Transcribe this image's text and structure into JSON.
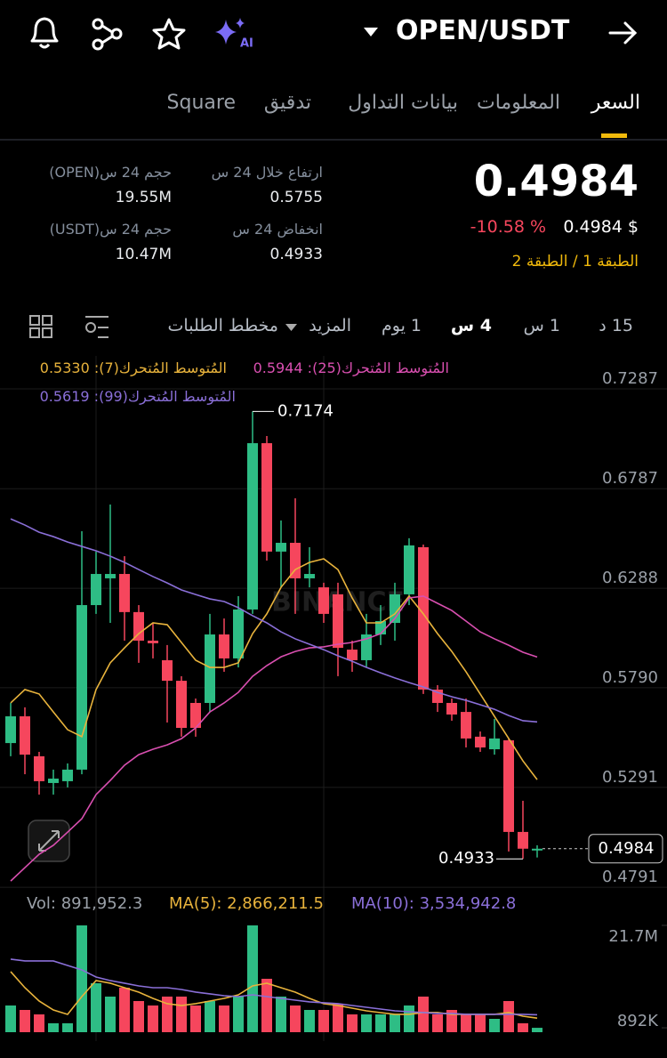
{
  "header": {
    "pair": "OPEN/USDT"
  },
  "tabs": [
    "السعر",
    "المعلومات",
    "بيانات التداول",
    "تدقيق",
    "Square"
  ],
  "ticker": {
    "price": "0.4984",
    "change": "-10.58 %",
    "price_usd": "0.4984 $",
    "tags": "الطبقة 1 / الطبقة 2"
  },
  "stats": [
    {
      "label": "ارتفاع خلال 24 س",
      "value": "0.5755"
    },
    {
      "label": "انخفاض 24 س",
      "value": "0.4933"
    },
    {
      "label": "حجم 24 س(OPEN)",
      "value": "19.55M"
    },
    {
      "label": "حجم 24 س(USDT)",
      "value": "10.47M"
    }
  ],
  "intervals": [
    "15 د",
    "1 س",
    "4 س",
    "1 يوم",
    "المزيد",
    "مخطط الطلبات"
  ],
  "chart_data": [
    {
      "type": "candlestick",
      "watermark": "BINANCE",
      "up_color": "#2ebd85",
      "down_color": "#f6465d",
      "open": [
        0.5513,
        0.5647,
        0.5447,
        0.5313,
        0.5322,
        0.538,
        0.6204,
        0.6338,
        0.636,
        0.6169,
        0.6026,
        0.5928,
        0.5825,
        0.5714,
        0.5714,
        0.6057,
        0.5937,
        0.6182,
        0.7015,
        0.6472,
        0.6516,
        0.6338,
        0.6293,
        0.6258,
        0.5981,
        0.5928,
        0.6057,
        0.6115,
        0.6258,
        0.6494,
        0.5781,
        0.5714,
        0.5669,
        0.5545,
        0.5482,
        0.5527,
        0.5068,
        0.4975
      ],
      "high": [
        0.5714,
        0.5692,
        0.5469,
        0.538,
        0.5411,
        0.6574,
        0.6472,
        0.6708,
        0.6449,
        0.6204,
        0.6115,
        0.6004,
        0.5848,
        0.5736,
        0.616,
        0.6137,
        0.6249,
        0.7174,
        0.7051,
        0.6628,
        0.6739,
        0.6494,
        0.6316,
        0.6316,
        0.6026,
        0.616,
        0.6204,
        0.6316,
        0.6539,
        0.6507,
        0.5803,
        0.5736,
        0.5736,
        0.5571,
        0.5634,
        0.5536,
        0.5224,
        0.5001
      ],
      "low": [
        0.5447,
        0.5357,
        0.5255,
        0.5255,
        0.5291,
        0.5357,
        0.616,
        0.6115,
        0.6026,
        0.5915,
        0.5937,
        0.5616,
        0.5545,
        0.5545,
        0.5669,
        0.587,
        0.5892,
        0.616,
        0.6427,
        0.6293,
        0.616,
        0.6293,
        0.6115,
        0.5848,
        0.587,
        0.5892,
        0.6004,
        0.6026,
        0.6204,
        0.5759,
        0.5669,
        0.5625,
        0.5491,
        0.5469,
        0.5455,
        0.497,
        0.4933,
        0.494
      ],
      "close": [
        0.5647,
        0.5455,
        0.5322,
        0.5335,
        0.538,
        0.6204,
        0.636,
        0.636,
        0.6169,
        0.6026,
        0.6013,
        0.5825,
        0.5589,
        0.5589,
        0.6057,
        0.5937,
        0.6182,
        0.7015,
        0.6472,
        0.6516,
        0.6338,
        0.636,
        0.616,
        0.599,
        0.5928,
        0.6057,
        0.6124,
        0.6258,
        0.6503,
        0.5781,
        0.5714,
        0.5656,
        0.5536,
        0.5491,
        0.5536,
        0.5068,
        0.4984,
        0.4984
      ],
      "lines": [
        {
          "name": "المُتوسط المُتحرك(7): 0.5330",
          "color": "#e8b33c",
          "values": [
            0.5714,
            0.5781,
            0.5759,
            0.5669,
            0.558,
            0.5545,
            0.5781,
            0.5915,
            0.599,
            0.6061,
            0.6115,
            0.6106,
            0.6017,
            0.5928,
            0.5892,
            0.5892,
            0.5915,
            0.6061,
            0.616,
            0.6293,
            0.6382,
            0.6418,
            0.6436,
            0.6382,
            0.624,
            0.6115,
            0.6115,
            0.616,
            0.6249,
            0.616,
            0.6061,
            0.5972,
            0.587,
            0.5759,
            0.5647,
            0.5536,
            0.5424,
            0.533
          ]
        },
        {
          "name": "المُتوسط المُتحرك(25): 0.5944",
          "color": "#d94fb0",
          "values": [
            0.4822,
            0.4889,
            0.4956,
            0.5001,
            0.5067,
            0.5134,
            0.5255,
            0.5326,
            0.5402,
            0.5455,
            0.5482,
            0.5504,
            0.5535,
            0.5589,
            0.5669,
            0.5714,
            0.5767,
            0.5847,
            0.5901,
            0.5945,
            0.5972,
            0.599,
            0.5995,
            0.6008,
            0.6017,
            0.6035,
            0.6061,
            0.6137,
            0.624,
            0.6249,
            0.6213,
            0.6177,
            0.6124,
            0.607,
            0.6035,
            0.6003,
            0.5968,
            0.5944
          ]
        },
        {
          "name": "المُتوسط المُتحرك(99): 0.5619",
          "color": "#8a6fd8",
          "values": [
            0.6636,
            0.6605,
            0.6569,
            0.6547,
            0.652,
            0.6498,
            0.6476,
            0.6449,
            0.6418,
            0.6382,
            0.6347,
            0.6315,
            0.628,
            0.6257,
            0.6235,
            0.6222,
            0.6191,
            0.6151,
            0.6115,
            0.607,
            0.6035,
            0.6008,
            0.5981,
            0.595,
            0.5923,
            0.5892,
            0.5865,
            0.5839,
            0.5816,
            0.5794,
            0.5767,
            0.5745,
            0.5727,
            0.5705,
            0.5682,
            0.5651,
            0.5625,
            0.5619
          ]
        }
      ],
      "ylim": [
        0.4778,
        0.7452
      ],
      "yticks": [
        0.7287,
        0.6787,
        0.6288,
        {
          "value": 0.579,
          "label": "0.5790"
        },
        0.5291,
        0.4791
      ],
      "grid": true
    },
    {
      "type": "bar",
      "label": "Vol: 891,952.3",
      "values": [
        5425000,
        4521000,
        3617000,
        1808000,
        1808000,
        21700000,
        9946000,
        7233000,
        9042000,
        6329000,
        5425000,
        7233000,
        7233000,
        5425000,
        6329000,
        5425000,
        7233000,
        21700000,
        10850000,
        7233000,
        5425000,
        4521000,
        4521000,
        5787000,
        3617000,
        3617000,
        3617000,
        3617000,
        5425000,
        7233000,
        3617000,
        4521000,
        3617000,
        3617000,
        2712000,
        6329000,
        1808000,
        891952.3
      ],
      "lines": [
        {
          "name": "MA(5): 2,866,211.5",
          "color": "#e8b33c",
          "values": [
            12300000,
            9040000,
            6330000,
            4520000,
            3620000,
            7230000,
            10490000,
            9950000,
            9040000,
            8140000,
            6870000,
            5790000,
            5420000,
            5790000,
            6330000,
            6870000,
            7590000,
            9400000,
            9950000,
            9040000,
            8140000,
            6870000,
            5790000,
            5420000,
            4880000,
            4340000,
            3980000,
            3620000,
            3620000,
            3980000,
            3980000,
            3620000,
            3620000,
            3620000,
            3620000,
            3980000,
            3250000,
            2866211.5
          ]
        },
        {
          "name": "MA(10): 3,534,942.8",
          "color": "#8a6fd8",
          "values": [
            14830000,
            14470000,
            14470000,
            14470000,
            13560000,
            12660000,
            11210000,
            10490000,
            9950000,
            9400000,
            9040000,
            9040000,
            8680000,
            8140000,
            7780000,
            7410000,
            7230000,
            7590000,
            7230000,
            6870000,
            6510000,
            6150000,
            5970000,
            5790000,
            5420000,
            5060000,
            4700000,
            4340000,
            4160000,
            3980000,
            3800000,
            3800000,
            3620000,
            3620000,
            3620000,
            3620000,
            3620000,
            3534942.8
          ]
        }
      ],
      "ylim": [
        0,
        23500000
      ],
      "yticks": [
        {
          "value": 21700000,
          "label": "21.7M"
        },
        {
          "value": 891952.3,
          "label": "892K"
        }
      ]
    }
  ]
}
